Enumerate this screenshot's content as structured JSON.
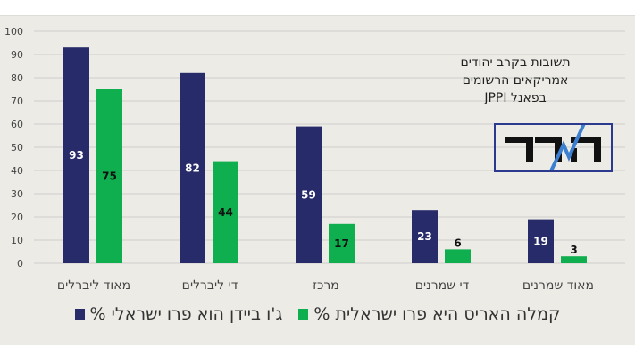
{
  "chart_data": {
    "type": "bar",
    "categories": [
      "מאוד ליברלים",
      "די ליברלים",
      "מרכז",
      "די שמרנים",
      "מאוד שמרנים"
    ],
    "series": [
      {
        "name": "ג'ו ביידן הוא פרו ישראלי %",
        "values": [
          93,
          82,
          59,
          23,
          19
        ],
        "color": "#272b69"
      },
      {
        "name": "קמלה האריס היא פרו ישראלית %",
        "values": [
          75,
          44,
          17,
          6,
          3
        ],
        "color": "#0fae4e"
      }
    ],
    "ylim": [
      0,
      100
    ],
    "yticks": [
      0,
      10,
      20,
      30,
      40,
      50,
      60,
      70,
      80,
      90,
      100
    ],
    "grid": true,
    "legend": "bottom",
    "data_labels": true
  },
  "note": {
    "lines": [
      "תשובות בקרב יהודים",
      "אמריקאים הרשומים",
      "בפאנל JPPI"
    ]
  },
  "logo": {
    "text": "המדד"
  }
}
